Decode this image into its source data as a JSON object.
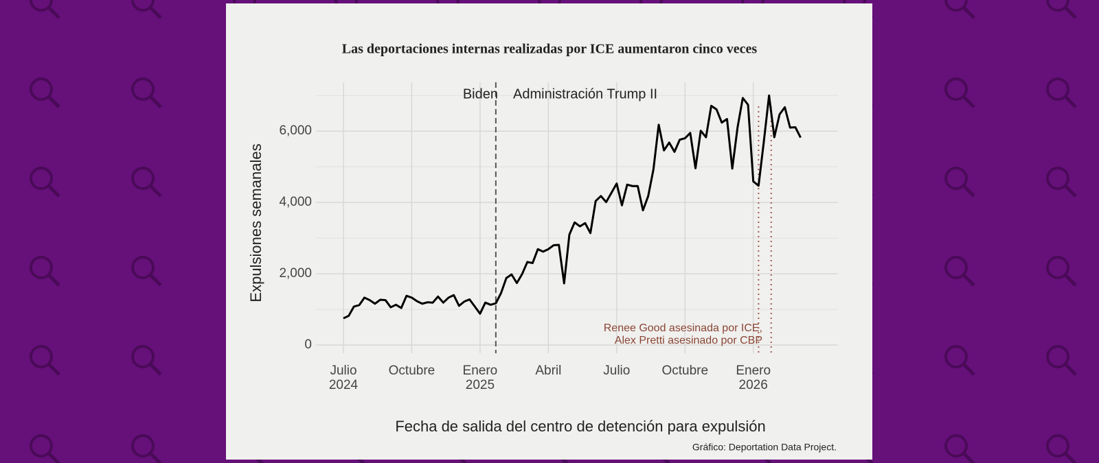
{
  "chart_data": {
    "type": "line",
    "title": "Las deportaciones internas realizadas por ICE aumentaron cinco veces",
    "y_label": "Expulsiones semanales",
    "x_label": "Fecha de salida del centro de detención para expulsión",
    "caption": "Gráfico: Deportation Data Project.",
    "annotations": [
      "Biden",
      "Administración Trump II",
      "Renee Good asesinada por ICE,",
      "Alex Pretti asesinado por CBP"
    ],
    "categories": [
      "Julio\n2024",
      null,
      null,
      null,
      null,
      null,
      null,
      null,
      null,
      null,
      null,
      null,
      null,
      "Octubre",
      null,
      null,
      null,
      null,
      null,
      null,
      null,
      null,
      null,
      null,
      null,
      null,
      "Enero\n2025",
      null,
      null,
      null,
      null,
      null,
      null,
      null,
      null,
      null,
      null,
      null,
      null,
      "Abril",
      null,
      null,
      null,
      null,
      null,
      null,
      null,
      null,
      null,
      null,
      null,
      null,
      "Julio",
      null,
      null,
      null,
      null,
      null,
      null,
      null,
      null,
      null,
      null,
      null,
      null,
      "Octubre",
      null,
      null,
      null,
      null,
      null,
      null,
      null,
      null,
      null,
      null,
      null,
      null,
      "Enero\n2026",
      null,
      null,
      null,
      null,
      null,
      null,
      null,
      null,
      null
    ],
    "series": [
      {
        "color": "#000000",
        "values": [
          750,
          820,
          1080,
          1120,
          1330,
          1260,
          1160,
          1270,
          1260,
          1060,
          1130,
          1040,
          1380,
          1330,
          1230,
          1160,
          1200,
          1190,
          1360,
          1190,
          1330,
          1400,
          1100,
          1220,
          1280,
          1080,
          880,
          1190,
          1130,
          1170,
          1460,
          1880,
          1980,
          1740,
          1990,
          2330,
          2300,
          2690,
          2620,
          2690,
          2800,
          2810,
          1730,
          3100,
          3440,
          3330,
          3420,
          3140,
          4040,
          4180,
          4010,
          4270,
          4530,
          3920,
          4500,
          4460,
          4460,
          3780,
          4180,
          4930,
          6180,
          5460,
          5680,
          5420,
          5760,
          5800,
          5950,
          4960,
          6010,
          5830,
          6710,
          6610,
          6240,
          6340,
          4950,
          6100,
          6930,
          6740,
          4590,
          4470,
          5700,
          7000,
          5830,
          6470,
          6670,
          6100,
          6110,
          5820
        ]
      }
    ],
    "ylim": [
      -230,
      7370
    ],
    "yticks": [
      0,
      {
        "value": 2000,
        "label": "2,000"
      },
      {
        "value": 4000,
        "label": "4,000"
      },
      {
        "value": 6000,
        "label": "6,000"
      }
    ],
    "y_minor_ticks": [
      1000,
      3000,
      5000,
      7000
    ],
    "grid": true
  }
}
